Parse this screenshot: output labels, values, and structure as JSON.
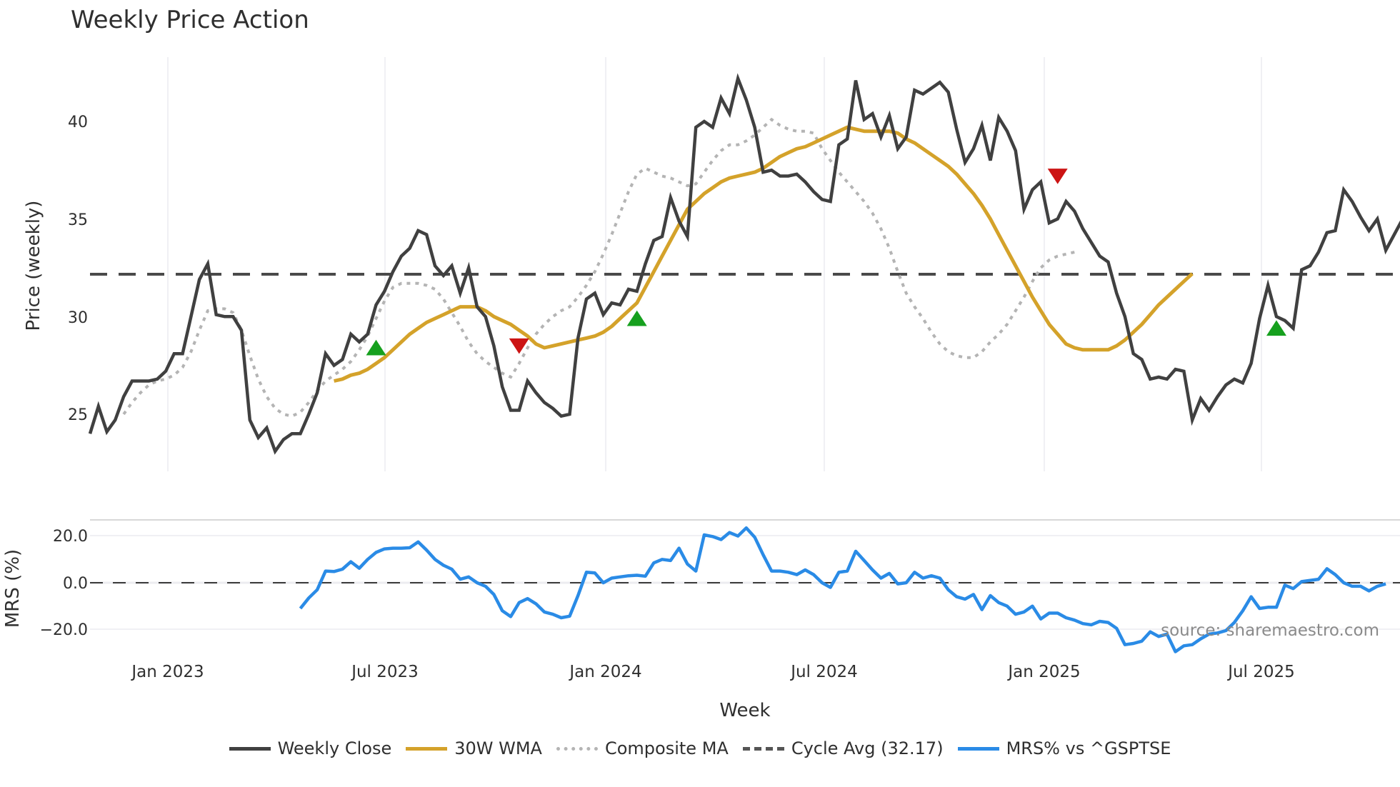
{
  "title": "Weekly Price Action",
  "axes": {
    "price_ylabel": "Price (weekly)",
    "mrs_ylabel": "MRS (%)",
    "xlabel": "Week",
    "price_ticks": [
      "40",
      "35",
      "30",
      "25"
    ],
    "mrs_ticks": [
      "20.0",
      "0.0",
      "−20.0"
    ],
    "x_ticks": [
      "Jan 2023",
      "Jul 2023",
      "Jan 2024",
      "Jul 2024",
      "Jan 2025",
      "Jul 2025"
    ]
  },
  "legend": {
    "items": [
      {
        "label": "Weekly Close",
        "color": "#404040",
        "style": "solid"
      },
      {
        "label": "30W WMA",
        "color": "#D4A22A",
        "style": "solid"
      },
      {
        "label": "Composite MA",
        "color": "#B0B0B0",
        "style": "dotted"
      },
      {
        "label": "Cycle Avg (32.17)",
        "color": "#555555",
        "style": "dashed"
      },
      {
        "label": "MRS% vs ^GSPTSE",
        "color": "#2A8BE6",
        "style": "solid"
      }
    ]
  },
  "source": "source: sharemaestro.com",
  "chart_data": [
    {
      "type": "line",
      "title": "Weekly Price Action",
      "xlabel": "Week",
      "ylabel": "Price (weekly)",
      "ylim": [
        22,
        43
      ],
      "x_tick_labels": [
        "Jan 2023",
        "Jul 2023",
        "Jan 2024",
        "Jul 2024",
        "Jan 2025",
        "Jul 2025"
      ],
      "x_tick_week_index": [
        9,
        35,
        61,
        87,
        113,
        139
      ],
      "grid": true,
      "legend_position": "bottom",
      "cycle_avg": 32.17,
      "series": [
        {
          "name": "Weekly Close",
          "start_week": 0,
          "values": [
            24.0,
            25.4,
            24.1,
            24.7,
            25.9,
            26.7,
            26.7,
            26.7,
            26.8,
            27.2,
            28.1,
            28.1,
            30.0,
            31.9,
            32.7,
            30.1,
            30.0,
            30.0,
            29.3,
            24.7,
            23.8,
            24.3,
            23.1,
            23.7,
            24.0,
            24.0,
            25.0,
            26.1,
            28.1,
            27.5,
            27.8,
            29.1,
            28.7,
            29.1,
            30.6,
            31.3,
            32.3,
            33.1,
            33.5,
            34.4,
            34.2,
            32.6,
            32.1,
            32.6,
            31.2,
            32.5,
            30.5,
            30.0,
            28.5,
            26.4,
            25.2,
            25.2,
            26.7,
            26.1,
            25.6,
            25.3,
            24.9,
            25.0,
            28.9,
            30.9,
            31.2,
            30.1,
            30.7,
            30.6,
            31.4,
            31.3,
            32.7,
            33.9,
            34.1,
            36.1,
            34.9,
            34.1,
            39.7,
            40.0,
            39.7,
            41.2,
            40.4,
            42.2,
            41.1,
            39.7,
            37.4,
            37.5,
            37.2,
            37.2,
            37.3,
            36.9,
            36.4,
            36.0,
            35.9,
            38.8,
            39.1,
            42.1,
            40.1,
            40.4,
            39.2,
            40.3,
            38.6,
            39.2,
            41.6,
            41.4,
            41.7,
            42.0,
            41.5,
            39.6,
            37.9,
            38.6,
            39.8,
            38.0,
            40.2,
            39.5,
            38.5,
            35.5,
            36.5,
            36.9,
            34.8,
            35.0,
            35.9,
            35.4,
            34.5,
            33.8,
            33.1,
            32.8,
            31.2,
            30.0,
            28.1,
            27.8,
            26.8,
            26.9,
            26.8,
            27.3,
            27.2,
            24.7,
            25.8,
            25.2,
            25.9,
            26.5,
            26.8,
            26.6,
            27.6,
            29.9,
            31.6,
            30.0,
            29.8,
            29.4,
            32.4,
            32.6,
            33.3,
            34.3,
            34.4,
            36.5,
            35.9,
            35.1,
            34.4,
            35.0,
            33.4,
            34.2,
            35.0
          ]
        },
        {
          "name": "30W WMA",
          "start_week": 29,
          "values": [
            26.7,
            26.8,
            27.0,
            27.1,
            27.3,
            27.6,
            27.9,
            28.3,
            28.7,
            29.1,
            29.4,
            29.7,
            29.9,
            30.1,
            30.3,
            30.5,
            30.5,
            30.5,
            30.3,
            30.0,
            29.8,
            29.6,
            29.3,
            29.0,
            28.6,
            28.4,
            28.5,
            28.6,
            28.7,
            28.8,
            28.9,
            29.0,
            29.2,
            29.5,
            29.9,
            30.3,
            30.7,
            31.5,
            32.3,
            33.1,
            33.9,
            34.7,
            35.5,
            35.9,
            36.3,
            36.6,
            36.9,
            37.1,
            37.2,
            37.3,
            37.4,
            37.6,
            37.9,
            38.2,
            38.4,
            38.6,
            38.7,
            38.9,
            39.1,
            39.3,
            39.5,
            39.7,
            39.6,
            39.5,
            39.5,
            39.5,
            39.5,
            39.4,
            39.1,
            38.9,
            38.6,
            38.3,
            38.0,
            37.7,
            37.3,
            36.8,
            36.3,
            35.7,
            35.0,
            34.2,
            33.4,
            32.6,
            31.8,
            31.0,
            30.3,
            29.6,
            29.1,
            28.6,
            28.4,
            28.3,
            28.3,
            28.3,
            28.3,
            28.5,
            28.8,
            29.2,
            29.6,
            30.1,
            30.6,
            31.0,
            31.4,
            31.8,
            32.2
          ]
        },
        {
          "name": "Composite MA",
          "start_week": 4,
          "values": [
            25.0,
            25.6,
            26.1,
            26.5,
            26.7,
            26.8,
            27.0,
            27.4,
            28.2,
            29.3,
            30.3,
            30.4,
            30.4,
            30.2,
            29.3,
            28.0,
            26.8,
            25.9,
            25.3,
            25.0,
            24.9,
            25.1,
            25.6,
            26.2,
            26.7,
            27.0,
            27.3,
            27.7,
            28.3,
            29.0,
            29.9,
            30.8,
            31.5,
            31.7,
            31.7,
            31.7,
            31.6,
            31.4,
            30.9,
            30.2,
            29.5,
            28.7,
            28.1,
            27.7,
            27.4,
            27.1,
            26.9,
            27.6,
            28.4,
            29.1,
            29.6,
            30.0,
            30.3,
            30.5,
            31.0,
            31.6,
            32.3,
            33.2,
            34.2,
            35.3,
            36.4,
            37.3,
            37.6,
            37.4,
            37.2,
            37.1,
            36.9,
            36.7,
            36.8,
            37.4,
            38.0,
            38.5,
            38.8,
            38.8,
            39.0,
            39.3,
            39.7,
            40.1,
            39.8,
            39.6,
            39.5,
            39.5,
            39.4,
            38.6,
            38.0,
            37.4,
            36.9,
            36.4,
            35.9,
            35.3,
            34.5,
            33.5,
            32.3,
            31.2,
            30.5,
            29.9,
            29.2,
            28.6,
            28.2,
            28.0,
            27.9,
            27.9,
            28.2,
            28.7,
            29.1,
            29.6,
            30.3,
            31.0,
            31.8,
            32.5,
            32.9,
            33.1,
            33.2,
            33.3
          ]
        },
        {
          "name": "Cycle Avg (32.17)",
          "values": [
            32.17
          ]
        }
      ],
      "markers": [
        {
          "type": "buy",
          "week": 34,
          "value": 28.3,
          "color": "#16A01E"
        },
        {
          "type": "sell",
          "week": 51,
          "value": 28.6,
          "color": "#CC1414"
        },
        {
          "type": "buy",
          "week": 65,
          "value": 29.8,
          "color": "#16A01E"
        },
        {
          "type": "sell",
          "week": 115,
          "value": 37.3,
          "color": "#CC1414"
        },
        {
          "type": "buy",
          "week": 141,
          "value": 29.3,
          "color": "#16A01E"
        }
      ]
    },
    {
      "type": "line",
      "title": "",
      "xlabel": "Week",
      "ylabel": "MRS (%)",
      "ylim": [
        -28,
        30
      ],
      "y_ticks": [
        20.0,
        0.0,
        -20.0
      ],
      "zero_line": true,
      "series": [
        {
          "name": "MRS% vs ^GSPTSE",
          "start_week": 25,
          "values": [
            -11.0,
            -6.5,
            -3.0,
            5.0,
            4.8,
            5.8,
            9.0,
            6.2,
            10.0,
            13.0,
            14.5,
            14.8,
            14.8,
            15.0,
            17.5,
            14.0,
            10.0,
            7.5,
            5.8,
            1.5,
            2.5,
            0.0,
            -1.5,
            -5.0,
            -12.0,
            -14.5,
            -8.5,
            -6.8,
            -9.0,
            -12.5,
            -13.5,
            -15.0,
            -14.3,
            -5.5,
            4.5,
            4.2,
            0.0,
            2.0,
            2.5,
            3.0,
            3.2,
            2.8,
            8.5,
            10.0,
            9.5,
            14.8,
            8.0,
            5.0,
            20.5,
            19.8,
            18.5,
            21.5,
            20.0,
            23.5,
            19.5,
            12.0,
            5.0,
            5.0,
            4.5,
            3.5,
            5.5,
            3.5,
            0.0,
            -2.0,
            4.5,
            5.0,
            13.5,
            9.5,
            5.5,
            2.0,
            4.0,
            -0.5,
            0.0,
            4.5,
            2.0,
            3.0,
            2.0,
            -3.0,
            -6.0,
            -7.0,
            -5.0,
            -11.5,
            -5.5,
            -8.5,
            -10.0,
            -13.5,
            -12.5,
            -10.0,
            -15.5,
            -13.0,
            -13.0,
            -15.0,
            -16.0,
            -17.5,
            -18.0,
            -16.5,
            -17.0,
            -19.5,
            -26.5,
            -26.0,
            -25.0,
            -21.0,
            -23.0,
            -22.0,
            -29.5,
            -27.0,
            -26.5,
            -24.0,
            -22.0,
            -21.5,
            -20.5,
            -17.0,
            -12.0,
            -6.0,
            -11.0,
            -10.5,
            -10.5,
            -1.0,
            -2.5,
            0.5,
            1.0,
            1.5,
            6.0,
            3.5,
            0.0,
            -1.5,
            -1.5,
            -3.5,
            -1.5,
            -0.5
          ]
        }
      ]
    }
  ]
}
